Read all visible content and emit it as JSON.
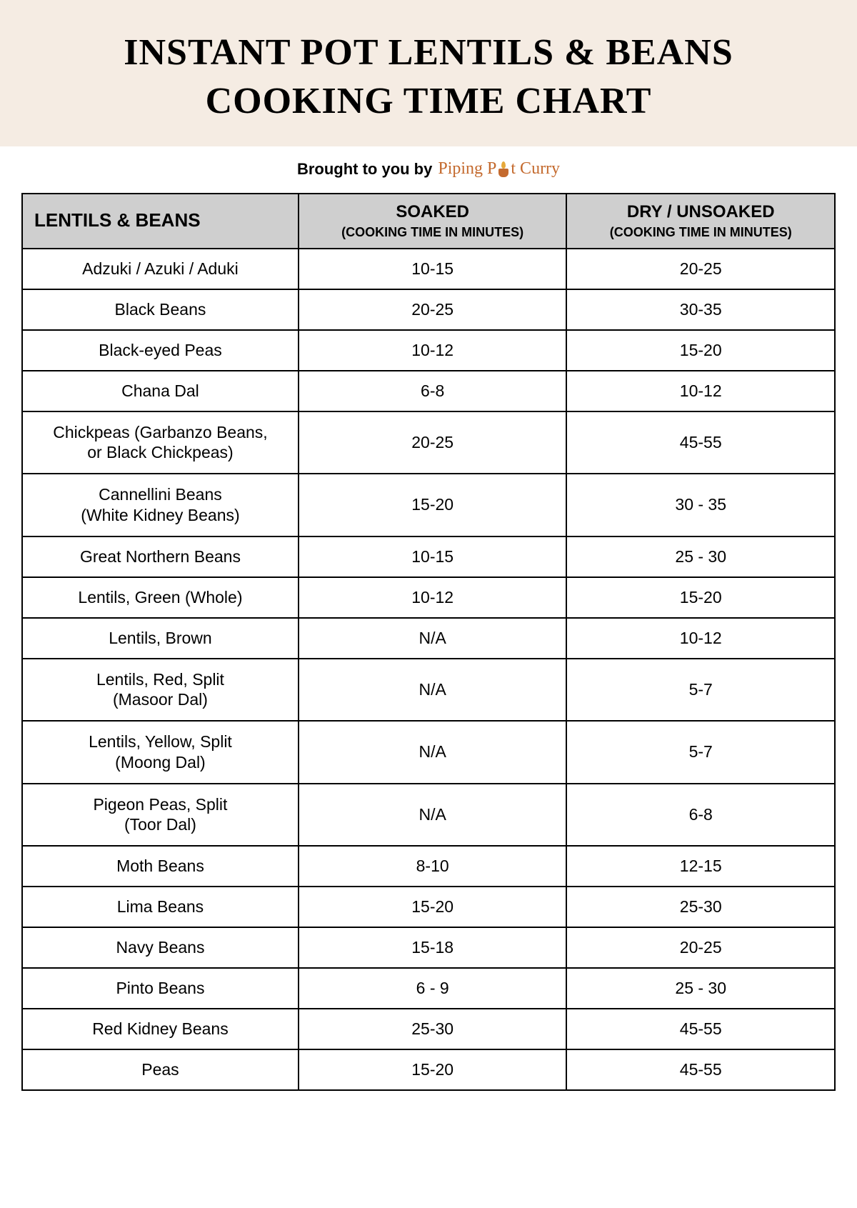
{
  "title_line1": "INSTANT POT LENTILS & BEANS",
  "title_line2": "COOKING TIME CHART",
  "byline_prefix": "Brought to you by",
  "brand_part1": "Piping P",
  "brand_part2": "t Curry",
  "table": {
    "columns": [
      {
        "heading": "LENTILS & BEANS",
        "sub": ""
      },
      {
        "heading": "SOAKED",
        "sub": "(COOKING TIME IN MINUTES)"
      },
      {
        "heading": "DRY / UNSOAKED",
        "sub": "(COOKING TIME IN MINUTES)"
      }
    ],
    "rows": [
      {
        "name": "Adzuki / Azuki / Aduki",
        "soaked": "10-15",
        "dry": "20-25"
      },
      {
        "name": "Black Beans",
        "soaked": "20-25",
        "dry": "30-35"
      },
      {
        "name": "Black-eyed Peas",
        "soaked": "10-12",
        "dry": "15-20"
      },
      {
        "name": "Chana Dal",
        "soaked": "6-8",
        "dry": "10-12"
      },
      {
        "name": "Chickpeas (Garbanzo Beans,\nor Black Chickpeas)",
        "soaked": "20-25",
        "dry": "45-55"
      },
      {
        "name": "Cannellini Beans\n(White Kidney Beans)",
        "soaked": "15-20",
        "dry": "30 - 35"
      },
      {
        "name": "Great Northern Beans",
        "soaked": "10-15",
        "dry": "25 - 30"
      },
      {
        "name": "Lentils, Green (Whole)",
        "soaked": "10-12",
        "dry": "15-20"
      },
      {
        "name": "Lentils, Brown",
        "soaked": "N/A",
        "dry": "10-12"
      },
      {
        "name": "Lentils, Red, Split\n(Masoor Dal)",
        "soaked": "N/A",
        "dry": "5-7"
      },
      {
        "name": "Lentils, Yellow, Split\n(Moong Dal)",
        "soaked": "N/A",
        "dry": "5-7"
      },
      {
        "name": "Pigeon Peas, Split\n(Toor Dal)",
        "soaked": "N/A",
        "dry": "6-8"
      },
      {
        "name": "Moth Beans",
        "soaked": "8-10",
        "dry": "12-15"
      },
      {
        "name": "Lima Beans",
        "soaked": "15-20",
        "dry": "25-30"
      },
      {
        "name": "Navy Beans",
        "soaked": "15-18",
        "dry": "20-25"
      },
      {
        "name": "Pinto Beans",
        "soaked": "6 - 9",
        "dry": "25 - 30"
      },
      {
        "name": "Red Kidney Beans",
        "soaked": "25-30",
        "dry": "45-55"
      },
      {
        "name": "Peas",
        "soaked": "15-20",
        "dry": "45-55"
      }
    ],
    "header_bg": "#cfcfcf",
    "border_color": "#000000",
    "title_bg": "#f5ece3",
    "brand_color": "#c46a2e"
  }
}
